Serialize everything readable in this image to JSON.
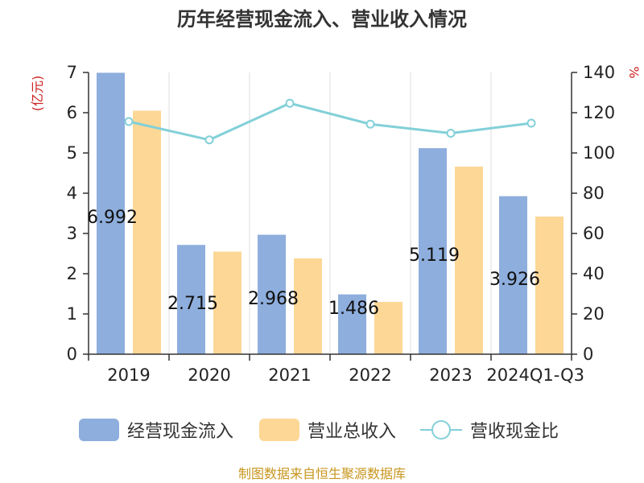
{
  "title": "历年经营现金流入、营业收入情况",
  "left_unit": "(亿元)",
  "right_unit": "%",
  "source": "制图数据来自恒生聚源数据库",
  "colors": {
    "cash": "#8eaedd",
    "revenue": "#fdd796",
    "ratio": "#82d0d8"
  },
  "chart_data": {
    "type": "bar",
    "categories": [
      "2019",
      "2020",
      "2021",
      "2022",
      "2023",
      "2024Q1-Q3"
    ],
    "series": [
      {
        "name": "经营现金流入",
        "type": "bar",
        "axis": "left",
        "values": [
          6.992,
          2.715,
          2.968,
          1.486,
          5.119,
          3.926
        ],
        "labels": [
          "6.992",
          "2.715",
          "2.968",
          "1.486",
          "5.119",
          "3.926"
        ]
      },
      {
        "name": "营业总收入",
        "type": "bar",
        "axis": "left",
        "values": [
          6.05,
          2.55,
          2.38,
          1.3,
          4.66,
          3.42
        ]
      },
      {
        "name": "营收现金比",
        "type": "line",
        "axis": "right",
        "values": [
          115.6,
          106.5,
          124.7,
          114.3,
          109.8,
          114.8
        ]
      }
    ],
    "y_left": {
      "min": 0,
      "max": 7,
      "ticks": [
        "0",
        "1",
        "2",
        "3",
        "4",
        "5",
        "6",
        "7"
      ]
    },
    "y_right": {
      "min": 0,
      "max": 140,
      "ticks": [
        "0",
        "20",
        "40",
        "60",
        "80",
        "100",
        "120",
        "140"
      ]
    },
    "grid": "vertical",
    "legend_position": "bottom"
  }
}
